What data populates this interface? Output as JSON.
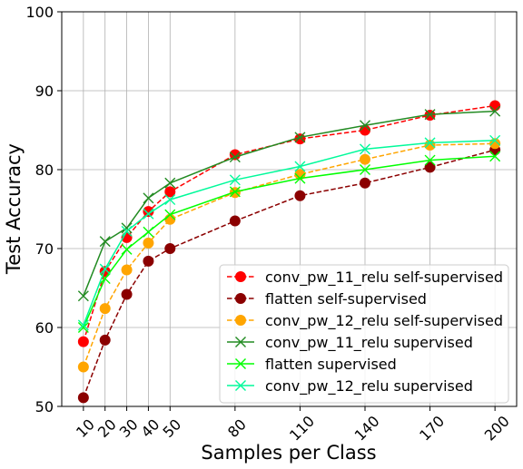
{
  "chart_data": {
    "type": "line",
    "title": "",
    "xlabel": "Samples per Class",
    "ylabel": "Test Accuracy",
    "x": [
      10,
      20,
      30,
      40,
      50,
      80,
      110,
      140,
      170,
      200
    ],
    "xticks": [
      "10",
      "20",
      "30",
      "40",
      "50",
      "80",
      "110",
      "140",
      "170",
      "200"
    ],
    "ylim": [
      50,
      100
    ],
    "yticks": [
      "50",
      "60",
      "70",
      "80",
      "90",
      "100"
    ],
    "grid": true,
    "legend_position": "lower-right",
    "series": [
      {
        "name": "conv_pw_11_relu self-supervised",
        "color": "#ff0000",
        "line": "dashed",
        "marker": "circle",
        "values": [
          58.2,
          67.1,
          71.4,
          74.7,
          77.2,
          81.9,
          83.9,
          85.0,
          86.9,
          88.1
        ]
      },
      {
        "name": "flatten self-supervised",
        "color": "#8b0000",
        "line": "dashed",
        "marker": "circle",
        "values": [
          51.1,
          58.4,
          64.2,
          68.4,
          70.0,
          73.5,
          76.7,
          78.3,
          80.3,
          82.5
        ]
      },
      {
        "name": "conv_pw_12_relu self-supervised",
        "color": "#ffa500",
        "line": "dashed",
        "marker": "circle",
        "values": [
          55.0,
          62.4,
          67.3,
          70.7,
          73.7,
          77.1,
          79.4,
          81.3,
          83.1,
          83.3
        ]
      },
      {
        "name": "conv_pw_11_relu supervised",
        "color": "#228b22",
        "line": "solid",
        "marker": "x",
        "values": [
          64.0,
          70.9,
          72.6,
          76.4,
          78.3,
          81.6,
          84.1,
          85.6,
          87.0,
          87.4
        ]
      },
      {
        "name": "flatten supervised",
        "color": "#00ff00",
        "line": "solid",
        "marker": "x",
        "values": [
          60.0,
          66.2,
          69.9,
          72.1,
          74.3,
          77.2,
          78.9,
          80.0,
          81.2,
          81.7
        ]
      },
      {
        "name": "conv_pw_12_relu supervised",
        "color": "#00fa9a",
        "line": "solid",
        "marker": "x",
        "values": [
          60.3,
          67.4,
          72.2,
          74.4,
          76.2,
          78.7,
          80.4,
          82.6,
          83.4,
          83.7
        ]
      }
    ]
  }
}
